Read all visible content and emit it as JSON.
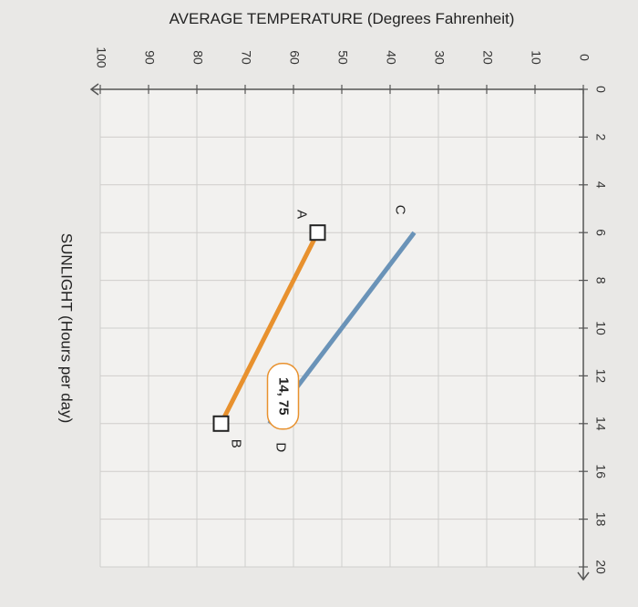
{
  "chart_data": {
    "type": "line",
    "x_axis": {
      "label": "SUNLIGHT (Hours per day)",
      "ticks": [
        "0",
        "2",
        "4",
        "6",
        "8",
        "10",
        "12",
        "14",
        "16",
        "18",
        "20"
      ],
      "range": [
        0,
        20
      ]
    },
    "y_axis": {
      "label": "AVERAGE TEMPERATURE (Degrees Fahrenheit)",
      "ticks": [
        "0",
        "10",
        "20",
        "30",
        "40",
        "50",
        "60",
        "70",
        "80",
        "90",
        "100"
      ],
      "range": [
        0,
        100
      ]
    },
    "series": [
      {
        "color": "#e8912e",
        "x": [
          6,
          14
        ],
        "y": [
          55,
          75
        ],
        "point_labels": [
          "A",
          "B"
        ],
        "endpoint_markers": "square"
      },
      {
        "color": "#6a93b8",
        "x": [
          6,
          14
        ],
        "y": [
          35,
          65
        ],
        "point_labels": [
          "C",
          "D"
        ],
        "endpoint_markers": "none"
      }
    ],
    "annotation": {
      "text": "14, 75",
      "x": 14,
      "y": 75,
      "border_color": "#e8912e"
    },
    "grid": true,
    "orientation": "rotated 90 degrees clockwise"
  }
}
